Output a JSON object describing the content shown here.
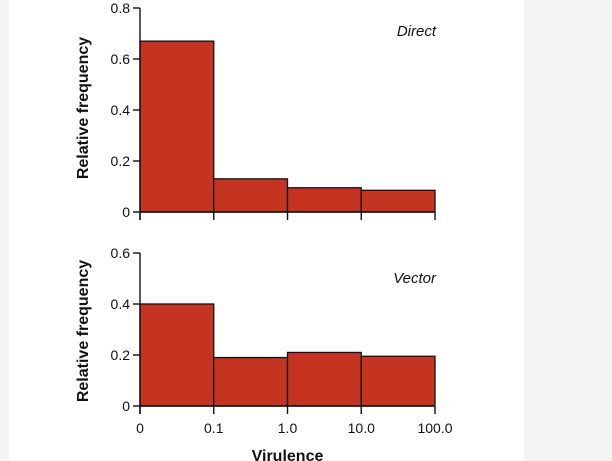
{
  "chart_data": [
    {
      "type": "bar",
      "panel_label": "Direct",
      "ylabel": "Relative frequency",
      "xlabel": "",
      "ylim": [
        0,
        0.8
      ],
      "yticks": [
        0,
        0.2,
        0.4,
        0.6,
        0.8
      ],
      "ytick_labels": [
        "0",
        "0.2",
        "0.4",
        "0.6",
        "0.8"
      ],
      "bin_edges": [
        0,
        0.1,
        1.0,
        10.0,
        100.0
      ],
      "values": [
        0.67,
        0.13,
        0.095,
        0.085
      ],
      "bar_color": "#c53321"
    },
    {
      "type": "bar",
      "panel_label": "Vector",
      "ylabel": "Relative frequency",
      "xlabel": "Virulence",
      "ylim": [
        0,
        0.6
      ],
      "yticks": [
        0,
        0.2,
        0.4,
        0.6
      ],
      "ytick_labels": [
        "0",
        "0.2",
        "0.4",
        "0.6"
      ],
      "bin_edges": [
        0,
        0.1,
        1.0,
        10.0,
        100.0
      ],
      "xtick_labels": [
        "0",
        "0.1",
        "1.0",
        "10.0",
        "100.0"
      ],
      "values": [
        0.4,
        0.19,
        0.21,
        0.195
      ],
      "bar_color": "#c53321"
    }
  ]
}
